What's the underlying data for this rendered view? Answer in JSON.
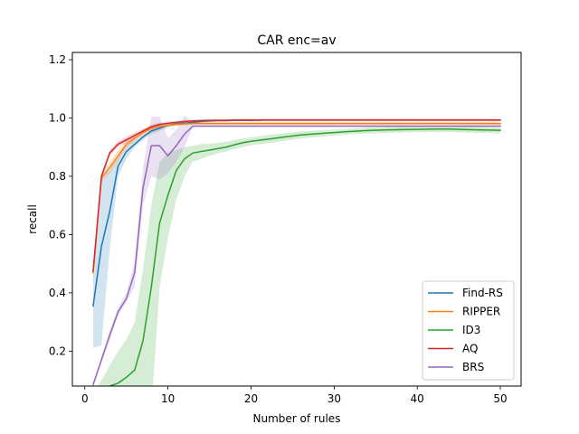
{
  "chart_data": {
    "type": "line",
    "title": "CAR enc=av",
    "xlabel": "Number of rules",
    "ylabel": "recall",
    "xlim": [
      -1.5,
      52.5
    ],
    "ylim": [
      0.08,
      1.225
    ],
    "xticks": [
      0,
      10,
      20,
      30,
      40,
      50
    ],
    "yticks": [
      0.2,
      0.4,
      0.6,
      0.8,
      1.0,
      1.2
    ],
    "ytick_labels": [
      "0.2",
      "0.4",
      "0.6",
      "0.8",
      "1.0",
      "1.2"
    ],
    "grid": false,
    "legend_position": "lower right",
    "x": [
      1,
      2,
      3,
      4,
      5,
      6,
      7,
      8,
      9,
      10,
      11,
      12,
      13,
      14,
      15,
      16,
      17,
      18,
      19,
      20,
      22,
      24,
      26,
      28,
      30,
      32,
      34,
      36,
      38,
      40,
      42,
      44,
      46,
      48,
      50
    ],
    "series": [
      {
        "name": "Find-RS",
        "color": "#1f77b4",
        "values": [
          0.355,
          0.56,
          0.68,
          0.835,
          0.885,
          0.91,
          0.935,
          0.955,
          0.965,
          0.975,
          0.98,
          0.982,
          0.985,
          0.988,
          0.99,
          0.991,
          0.991,
          0.992,
          0.992,
          0.992,
          0.993,
          0.993,
          0.993,
          0.993,
          0.993,
          0.993,
          0.993,
          0.993,
          0.993,
          0.993,
          0.993,
          0.993,
          0.993,
          0.993,
          0.993
        ],
        "band_lower": [
          0.21,
          0.22,
          0.55,
          0.8,
          0.86,
          0.9,
          0.925,
          0.945,
          0.955,
          0.968,
          0.975,
          0.978,
          0.98,
          0.984,
          0.986,
          0.987,
          0.988,
          0.989,
          0.989,
          0.989,
          0.99,
          0.99,
          0.99,
          0.99,
          0.99,
          0.99,
          0.99,
          0.99,
          0.99,
          0.99,
          0.99,
          0.99,
          0.99,
          0.99,
          0.99
        ],
        "band_upper": [
          0.5,
          0.8,
          0.82,
          0.87,
          0.91,
          0.925,
          0.945,
          0.965,
          0.975,
          0.982,
          0.985,
          0.986,
          0.99,
          0.992,
          0.994,
          0.995,
          0.995,
          0.995,
          0.995,
          0.995,
          0.996,
          0.996,
          0.996,
          0.996,
          0.996,
          0.996,
          0.996,
          0.996,
          0.996,
          0.996,
          0.996,
          0.996,
          0.996,
          0.996,
          0.996
        ]
      },
      {
        "name": "RIPPER",
        "color": "#ff7f0e",
        "values": [
          0.47,
          0.795,
          0.83,
          0.87,
          0.91,
          0.93,
          0.95,
          0.965,
          0.97,
          0.975,
          0.978,
          0.98,
          0.981,
          0.981,
          0.981,
          0.981,
          0.981,
          0.981,
          0.981,
          0.981,
          0.981,
          0.981,
          0.981,
          0.981,
          0.981,
          0.981,
          0.981,
          0.981,
          0.981,
          0.981,
          0.981,
          0.981,
          0.981,
          0.981,
          0.981
        ],
        "band_lower": [
          0.44,
          0.78,
          0.81,
          0.85,
          0.895,
          0.92,
          0.94,
          0.958,
          0.963,
          0.97,
          0.973,
          0.975,
          0.976,
          0.976,
          0.976,
          0.976,
          0.976,
          0.976,
          0.976,
          0.976,
          0.976,
          0.976,
          0.976,
          0.976,
          0.976,
          0.976,
          0.976,
          0.976,
          0.976,
          0.976,
          0.976,
          0.976,
          0.976,
          0.976,
          0.976
        ],
        "band_upper": [
          0.5,
          0.81,
          0.85,
          0.89,
          0.925,
          0.94,
          0.96,
          0.972,
          0.977,
          0.98,
          0.983,
          0.985,
          0.986,
          0.986,
          0.986,
          0.986,
          0.986,
          0.986,
          0.986,
          0.986,
          0.986,
          0.986,
          0.986,
          0.986,
          0.986,
          0.986,
          0.986,
          0.986,
          0.986,
          0.986,
          0.986,
          0.986,
          0.986,
          0.986,
          0.986
        ]
      },
      {
        "name": "ID3",
        "color": "#2ca02c",
        "values": [
          0.0,
          0.05,
          0.08,
          0.09,
          0.11,
          0.135,
          0.235,
          0.42,
          0.64,
          0.735,
          0.82,
          0.86,
          0.88,
          0.885,
          0.89,
          0.895,
          0.9,
          0.908,
          0.915,
          0.92,
          0.927,
          0.935,
          0.942,
          0.946,
          0.95,
          0.954,
          0.957,
          0.959,
          0.96,
          0.961,
          0.962,
          0.962,
          0.96,
          0.959,
          0.958
        ],
        "band_lower": [
          0.0,
          0.0,
          0.0,
          0.0,
          0.0,
          0.0,
          0.0,
          0.0,
          0.42,
          0.59,
          0.72,
          0.8,
          0.85,
          0.86,
          0.87,
          0.878,
          0.885,
          0.893,
          0.9,
          0.906,
          0.913,
          0.922,
          0.93,
          0.935,
          0.94,
          0.944,
          0.947,
          0.949,
          0.95,
          0.951,
          0.952,
          0.952,
          0.95,
          0.949,
          0.948
        ],
        "band_upper": [
          0.06,
          0.1,
          0.15,
          0.2,
          0.24,
          0.3,
          0.48,
          0.7,
          0.85,
          0.88,
          0.89,
          0.9,
          0.905,
          0.91,
          0.912,
          0.915,
          0.918,
          0.925,
          0.93,
          0.934,
          0.941,
          0.948,
          0.954,
          0.957,
          0.96,
          0.964,
          0.967,
          0.969,
          0.97,
          0.971,
          0.972,
          0.972,
          0.97,
          0.969,
          0.968
        ]
      },
      {
        "name": "AQ",
        "color": "#d62728",
        "values": [
          0.475,
          0.8,
          0.88,
          0.91,
          0.925,
          0.94,
          0.955,
          0.97,
          0.978,
          0.982,
          0.985,
          0.988,
          0.99,
          0.991,
          0.992,
          0.992,
          0.992,
          0.993,
          0.993,
          0.993,
          0.993,
          0.993,
          0.993,
          0.993,
          0.993,
          0.993,
          0.993,
          0.993,
          0.993,
          0.993,
          0.993,
          0.993,
          0.993,
          0.993,
          0.993
        ],
        "band_lower": [
          0.46,
          0.79,
          0.87,
          0.9,
          0.915,
          0.93,
          0.948,
          0.963,
          0.972,
          0.977,
          0.98,
          0.983,
          0.986,
          0.987,
          0.988,
          0.988,
          0.988,
          0.989,
          0.989,
          0.989,
          0.989,
          0.989,
          0.989,
          0.989,
          0.989,
          0.989,
          0.989,
          0.989,
          0.989,
          0.989,
          0.989,
          0.989,
          0.989,
          0.989,
          0.989
        ],
        "band_upper": [
          0.49,
          0.81,
          0.89,
          0.92,
          0.935,
          0.95,
          0.962,
          0.977,
          0.984,
          0.987,
          0.99,
          0.993,
          0.994,
          0.995,
          0.996,
          0.996,
          0.996,
          0.997,
          0.997,
          0.997,
          0.997,
          0.997,
          0.997,
          0.997,
          0.997,
          0.997,
          0.997,
          0.997,
          0.997,
          0.997,
          0.997,
          0.997,
          0.997,
          0.997,
          0.997
        ]
      },
      {
        "name": "BRS",
        "color": "#9467bd",
        "values": [
          0.085,
          0.17,
          0.255,
          0.335,
          0.38,
          0.47,
          0.76,
          0.905,
          0.905,
          0.87,
          0.905,
          0.945,
          0.972,
          0.972,
          0.972,
          0.972,
          0.972,
          0.972,
          0.972,
          0.972,
          0.972,
          0.972,
          0.972,
          0.972,
          0.972,
          0.972,
          0.972,
          0.972,
          0.972,
          0.972,
          0.972,
          0.972,
          0.972,
          0.972,
          0.972
        ],
        "band_lower": [
          0.08,
          0.16,
          0.24,
          0.32,
          0.37,
          0.42,
          0.7,
          0.8,
          0.79,
          0.81,
          0.85,
          0.9,
          0.97,
          0.97,
          0.97,
          0.97,
          0.97,
          0.97,
          0.97,
          0.97,
          0.97,
          0.97,
          0.97,
          0.97,
          0.97,
          0.97,
          0.97,
          0.97,
          0.97,
          0.97,
          0.97,
          0.97,
          0.97,
          0.97,
          0.97
        ],
        "band_upper": [
          0.09,
          0.18,
          0.27,
          0.35,
          0.4,
          0.51,
          0.83,
          1.005,
          1.005,
          0.93,
          0.96,
          1.01,
          0.975,
          0.975,
          0.975,
          0.975,
          0.975,
          0.975,
          0.975,
          0.975,
          0.975,
          0.975,
          0.975,
          0.975,
          0.975,
          0.975,
          0.975,
          0.975,
          0.975,
          0.975,
          0.975,
          0.975,
          0.975,
          0.975,
          0.975
        ]
      }
    ]
  }
}
